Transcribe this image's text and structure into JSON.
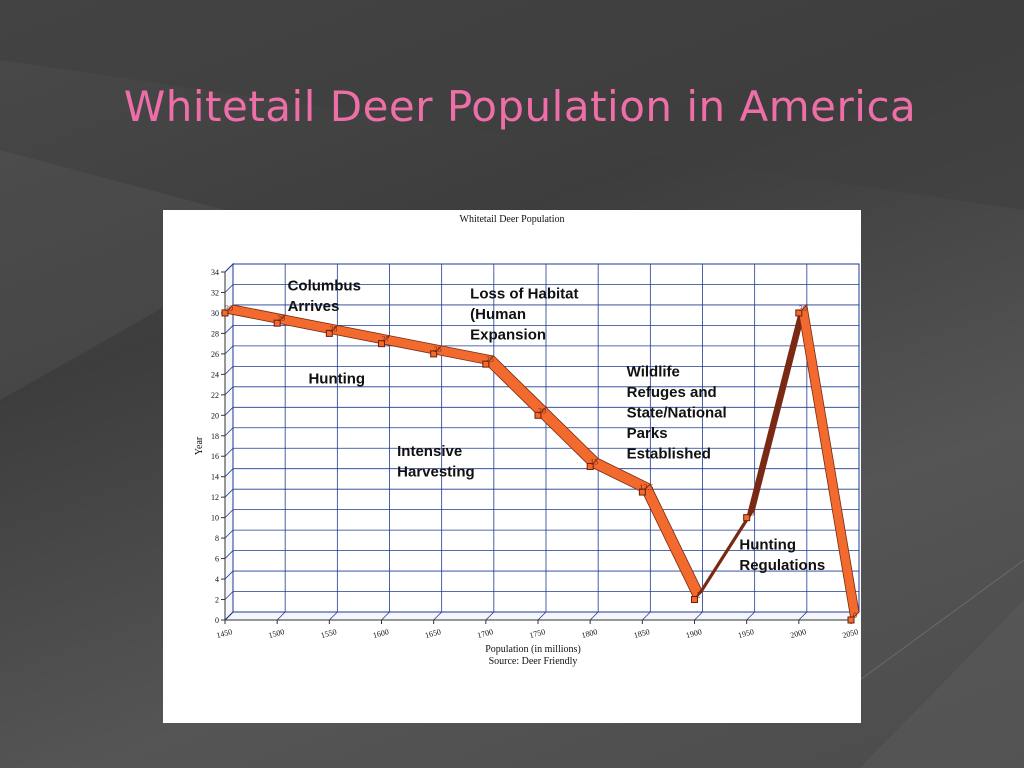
{
  "slide": {
    "title": "Whitetail Deer Population in America",
    "title_color": "#ee6fa8"
  },
  "chart_data": {
    "type": "line",
    "title": "Whitetail Deer Population",
    "xlabel": "Population (in millions)",
    "ylabel": "Year",
    "source": "Source: Deer Friendly",
    "x": [
      1450,
      1500,
      1550,
      1600,
      1650,
      1700,
      1750,
      1800,
      1850,
      1900,
      1950,
      2000,
      2050
    ],
    "values": [
      30,
      29,
      28,
      27,
      26,
      25,
      20,
      15,
      12.5,
      2,
      10,
      30,
      0
    ],
    "point_labels": [
      "30",
      "29",
      "28",
      "27",
      "26",
      "25",
      "20",
      "15",
      "12.5",
      "2",
      "10",
      "30",
      "0"
    ],
    "x_ticks": [
      "1450",
      "1500",
      "1550",
      "1600",
      "1650",
      "1700",
      "1750",
      "1800",
      "1850",
      "1900",
      "1950",
      "2000",
      "2050"
    ],
    "y_ticks": [
      "0",
      "2",
      "4",
      "6",
      "8",
      "10",
      "12",
      "14",
      "16",
      "18",
      "20",
      "22",
      "24",
      "26",
      "28",
      "30",
      "32",
      "34"
    ],
    "ylim": [
      0,
      34
    ],
    "xlim": [
      1450,
      2050
    ],
    "grid": true,
    "line_color": "#f26a2e",
    "rising_segment_color": "#7a2a14",
    "annotations": [
      {
        "text": [
          "Columbus",
          "Arrives"
        ],
        "x": 1510,
        "y": 32.2
      },
      {
        "text": [
          "Hunting"
        ],
        "x": 1530,
        "y": 23.1
      },
      {
        "text": [
          "Loss of Habitat",
          "(Human",
          "Expansion"
        ],
        "x": 1685,
        "y": 31.4
      },
      {
        "text": [
          "Intensive",
          "Harvesting"
        ],
        "x": 1615,
        "y": 16.0
      },
      {
        "text": [
          "Wildlife",
          "Refuges and",
          "State/National",
          "Parks",
          "Established"
        ],
        "x": 1835,
        "y": 23.8
      },
      {
        "text": [
          "Hunting",
          "Regulations"
        ],
        "x": 1943,
        "y": 6.9
      }
    ]
  }
}
